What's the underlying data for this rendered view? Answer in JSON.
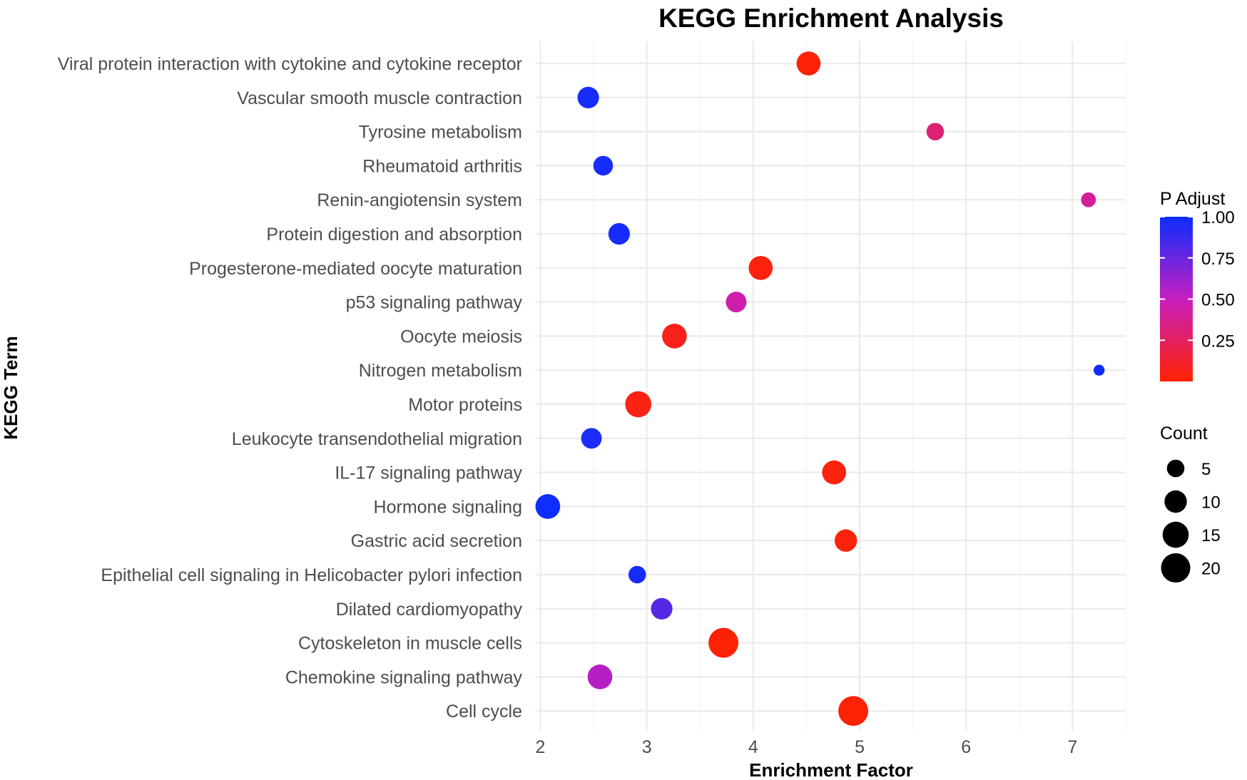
{
  "chart_data": {
    "type": "scatter",
    "title": "KEGG Enrichment Analysis",
    "xlabel": "Enrichment Factor",
    "ylabel": "KEGG Term",
    "xlim": [
      1.95,
      7.5
    ],
    "x_ticks": [
      2,
      3,
      4,
      5,
      6,
      7
    ],
    "grid": true,
    "legend_position": "right",
    "categories": [
      "Viral protein interaction with cytokine and cytokine receptor",
      "Vascular smooth muscle contraction",
      "Tyrosine metabolism",
      "Rheumatoid arthritis",
      "Renin-angiotensin system",
      "Protein digestion and absorption",
      "Progesterone-mediated oocyte maturation",
      "p53 signaling pathway",
      "Oocyte meiosis",
      "Nitrogen metabolism",
      "Motor proteins",
      "Leukocyte transendothelial migration",
      "IL-17 signaling pathway",
      "Hormone signaling",
      "Gastric acid secretion",
      "Epithelial cell signaling in Helicobacter pylori infection",
      "Dilated cardiomyopathy",
      "Cytoskeleton in muscle cells",
      "Chemokine signaling pathway",
      "Cell cycle"
    ],
    "points": [
      {
        "term": "Viral protein interaction with cytokine and cytokine receptor",
        "x": 4.52,
        "count": 12,
        "p_adjust": 0.02
      },
      {
        "term": "Vascular smooth muscle contraction",
        "x": 2.45,
        "count": 9,
        "p_adjust": 0.97
      },
      {
        "term": "Tyrosine metabolism",
        "x": 5.71,
        "count": 5,
        "p_adjust": 0.3
      },
      {
        "term": "Rheumatoid arthritis",
        "x": 2.59,
        "count": 7,
        "p_adjust": 0.97
      },
      {
        "term": "Renin-angiotensin system",
        "x": 7.15,
        "count": 3,
        "p_adjust": 0.4
      },
      {
        "term": "Protein digestion and absorption",
        "x": 2.74,
        "count": 9,
        "p_adjust": 0.97
      },
      {
        "term": "Progesterone-mediated oocyte maturation",
        "x": 4.07,
        "count": 12,
        "p_adjust": 0.03
      },
      {
        "term": "p53 signaling pathway",
        "x": 3.84,
        "count": 8,
        "p_adjust": 0.45
      },
      {
        "term": "Oocyte meiosis",
        "x": 3.26,
        "count": 13,
        "p_adjust": 0.07
      },
      {
        "term": "Nitrogen metabolism",
        "x": 7.25,
        "count": 1,
        "p_adjust": 0.98
      },
      {
        "term": "Motor proteins",
        "x": 2.92,
        "count": 15,
        "p_adjust": 0.05
      },
      {
        "term": "Leukocyte transendothelial migration",
        "x": 2.48,
        "count": 8,
        "p_adjust": 0.95
      },
      {
        "term": "IL-17 signaling pathway",
        "x": 4.76,
        "count": 12,
        "p_adjust": 0.03
      },
      {
        "term": "Hormone signaling",
        "x": 2.07,
        "count": 13,
        "p_adjust": 0.99
      },
      {
        "term": "Gastric acid secretion",
        "x": 4.87,
        "count": 10,
        "p_adjust": 0.03
      },
      {
        "term": "Epithelial cell signaling in Helicobacter pylori infection",
        "x": 2.91,
        "count": 5,
        "p_adjust": 0.97
      },
      {
        "term": "Dilated cardiomyopathy",
        "x": 3.14,
        "count": 9,
        "p_adjust": 0.8
      },
      {
        "term": "Cytoskeleton in muscle cells",
        "x": 3.72,
        "count": 21,
        "p_adjust": 0.01
      },
      {
        "term": "Chemokine signaling pathway",
        "x": 2.56,
        "count": 13,
        "p_adjust": 0.55
      },
      {
        "term": "Cell cycle",
        "x": 4.94,
        "count": 21,
        "p_adjust": 0.01
      }
    ],
    "legend_color": {
      "title": "P Adjust",
      "low_color": "#ff2200",
      "mid_color": "#c71ec0",
      "high_color": "#0a2dff",
      "ticks": [
        1.0,
        0.75,
        0.5,
        0.25
      ],
      "tick_labels": [
        "1.00",
        "0.75",
        "0.50",
        "0.25"
      ]
    },
    "legend_size": {
      "title": "Count",
      "values": [
        5,
        10,
        15,
        20
      ],
      "labels": [
        "5",
        "10",
        "15",
        "20"
      ]
    }
  }
}
